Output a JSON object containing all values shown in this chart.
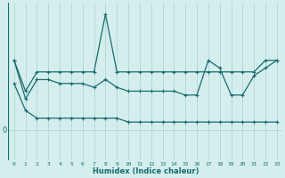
{
  "xlabel": "Humidex (Indice chaleur)",
  "bg_color": "#d4eeee",
  "line_color": "#1a6b6b",
  "grid_color": "#b8d8d8",
  "x_ticks": [
    0,
    1,
    2,
    3,
    4,
    5,
    6,
    7,
    8,
    9,
    10,
    11,
    12,
    13,
    14,
    15,
    16,
    17,
    18,
    19,
    20,
    21,
    22,
    23
  ],
  "y_zero_label": "0",
  "line1_x": [
    0,
    1,
    2,
    3,
    4,
    5,
    6,
    7,
    8,
    9,
    10,
    11,
    12,
    13,
    14,
    15,
    16,
    17,
    18,
    19,
    20,
    21,
    22,
    23
  ],
  "line1_y": [
    18,
    10,
    15,
    15,
    15,
    15,
    15,
    15,
    30,
    15,
    15,
    15,
    15,
    15,
    15,
    15,
    15,
    15,
    15,
    15,
    15,
    15,
    18,
    18
  ],
  "line2_x": [
    0,
    1,
    2,
    3,
    4,
    5,
    6,
    7,
    8,
    9,
    10,
    11,
    12,
    13,
    14,
    15,
    16,
    17,
    18,
    19,
    20,
    21,
    22,
    23
  ],
  "line2_y": [
    18,
    8,
    13,
    13,
    12,
    12,
    12,
    11,
    13,
    11,
    10,
    10,
    10,
    10,
    10,
    9,
    9,
    18,
    16,
    9,
    9,
    14,
    16,
    18
  ],
  "line3_x": [
    0,
    1,
    2,
    3,
    4,
    5,
    6,
    7,
    8,
    9,
    10,
    11,
    12,
    13,
    14,
    15,
    16,
    17,
    18,
    19,
    20,
    21,
    22,
    23
  ],
  "line3_y": [
    12,
    5,
    3,
    3,
    3,
    3,
    3,
    3,
    3,
    3,
    2,
    2,
    2,
    2,
    2,
    2,
    2,
    2,
    2,
    2,
    2,
    2,
    2,
    2
  ],
  "ylim": [
    -8,
    33
  ],
  "xlim": [
    -0.5,
    23.5
  ]
}
